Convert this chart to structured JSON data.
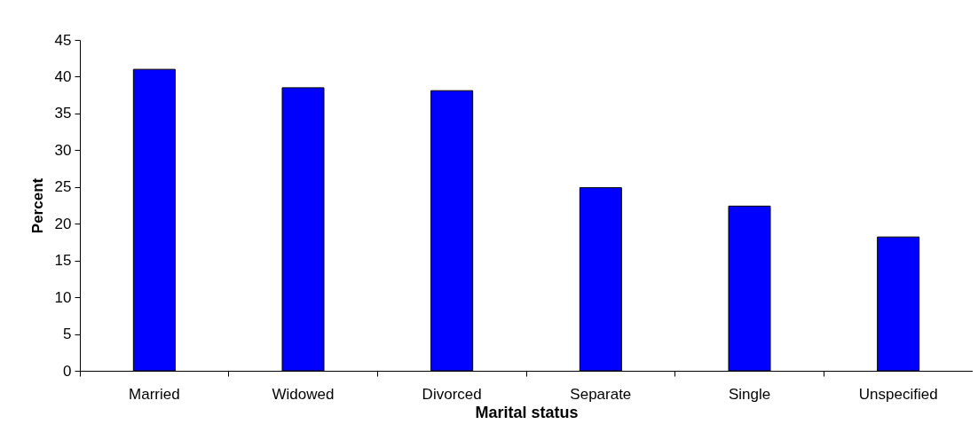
{
  "chart_data": {
    "type": "bar",
    "xlabel": "Marital status",
    "ylabel": "Percent",
    "categories": [
      "Married",
      "Widowed",
      "Divorced",
      "Separate",
      "Single",
      "Unspecified"
    ],
    "values": [
      41.0,
      38.5,
      38.1,
      24.9,
      22.4,
      18.2
    ],
    "color": "#0000ff",
    "ylim": [
      0,
      45
    ],
    "yticks": [
      0,
      5,
      10,
      15,
      20,
      25,
      30,
      35,
      40,
      45
    ],
    "grid": false
  }
}
